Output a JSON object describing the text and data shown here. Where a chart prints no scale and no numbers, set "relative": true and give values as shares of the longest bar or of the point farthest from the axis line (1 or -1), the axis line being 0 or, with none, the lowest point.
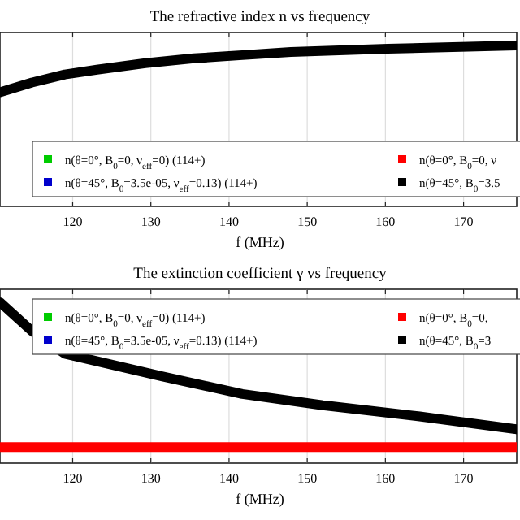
{
  "chart_data": [
    {
      "type": "line",
      "title": "The refractive index n vs frequency",
      "xlabel": "f (MHz)",
      "relative": true,
      "xlim": [
        110.7,
        176.8
      ],
      "xticks": [
        120,
        130,
        140,
        150,
        160,
        170
      ],
      "grid": "x",
      "legend": "bottom",
      "x": [
        110.7,
        114.8,
        119,
        123.1,
        129.3,
        135.5,
        141.7,
        147.9,
        154.1,
        160.3,
        168.6,
        176.8
      ],
      "series": [
        {
          "name": "n(θ=0°, B$_{0}$=0, ν$_{eff}$=0) (114+)",
          "color": "#00cc00",
          "values": [
            null,
            null,
            null,
            null,
            null,
            null,
            null,
            null,
            null,
            null,
            null,
            null
          ]
        },
        {
          "name": "n(θ=0°, B$_{0}$=0, ν",
          "color": "#ff0000",
          "values": [
            null,
            null,
            null,
            null,
            null,
            null,
            null,
            null,
            null,
            null,
            null,
            null
          ]
        },
        {
          "name": "n(θ=45°, B$_{0}$=3.5e-05, ν$_{eff}$=0.13) (114+)",
          "color": "#0000cc",
          "values": [
            null,
            null,
            null,
            null,
            null,
            null,
            null,
            null,
            null,
            null,
            null,
            null
          ]
        },
        {
          "name": "n(θ=45°, B$_{0}$=3.5",
          "color": "#000000",
          "values": [
            0.71,
            0.77,
            0.82,
            0.85,
            0.89,
            0.92,
            0.94,
            0.96,
            0.97,
            0.98,
            0.99,
            1
          ]
        }
      ]
    },
    {
      "type": "line",
      "title": "The extinction coefficient γ vs frequency",
      "xlabel": "f (MHz)",
      "relative": true,
      "xlim": [
        110.7,
        176.8
      ],
      "xticks": [
        120,
        130,
        140,
        150,
        160,
        170
      ],
      "grid": "x",
      "legend": "top",
      "x": [
        110.7,
        114.8,
        119,
        131.4,
        141.7,
        152,
        164.4,
        176.8
      ],
      "series": [
        {
          "name": "n(θ=0°, B$_{0}$=0, ν$_{eff}$=0) (114+)",
          "color": "#00cc00",
          "values": [
            null,
            null,
            null,
            null,
            null,
            null,
            null,
            null
          ]
        },
        {
          "name": "n(θ=0°, B$_{0}$=0,",
          "color": "#ff0000",
          "values": [
            0.1,
            0.1,
            0.1,
            0.1,
            0.1,
            0.1,
            0.1,
            0.1
          ]
        },
        {
          "name": "n(θ=45°, B$_{0}$=3.5e-05, ν$_{eff}$=0.13) (114+)",
          "color": "#0000cc",
          "values": [
            null,
            null,
            null,
            null,
            null,
            null,
            null,
            null
          ]
        },
        {
          "name": "n(θ=45°, B$_{0}$=3",
          "color": "#000000",
          "values": [
            1,
            0.82,
            0.68,
            0.54,
            0.43,
            0.36,
            0.29,
            0.21
          ]
        }
      ]
    }
  ]
}
